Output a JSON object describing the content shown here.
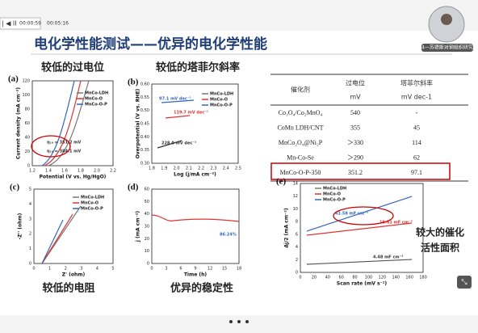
{
  "player": {
    "time_current": "00:00:59",
    "time_total": "00:05:16",
    "presenter_label": "4—苏德斯对钢组织研究"
  },
  "slide": {
    "title": "电化学性能测试——优异的电化学性能",
    "captions": [
      "较低的过电位",
      "较低的塔菲尔斜率",
      "较低的电阻",
      "优异的稳定性",
      "较大的催化",
      "活性面积"
    ],
    "table": {
      "header": [
        [
          "催化剂",
          ""
        ],
        [
          "过电位",
          "mV"
        ],
        [
          "塔菲尔斜率",
          "mV dec-1"
        ]
      ],
      "rows": [
        [
          "Co₃O₄/Co₂MnO₄",
          "540",
          "-"
        ],
        [
          "CoMn LDH/CNT",
          "355",
          "45"
        ],
        [
          "MnCo₂O₄@Ni₂P",
          "＞330",
          "114"
        ],
        [
          "Mn-Co-Se",
          "＞290",
          "62"
        ],
        [
          "MnCo-O-P-350",
          "351.2",
          "97.1"
        ]
      ]
    },
    "panels": [
      {
        "label": "(a)",
        "ylabel": "Current density (mA cm⁻²)",
        "xlabel": "Potential (V vs. Hg/HgO)",
        "xticks": [
          "1.2",
          "1.4",
          "1.6",
          "1.8",
          "2.0",
          "2.2"
        ],
        "yticks": [
          "0",
          "20",
          "40",
          "60",
          "80",
          "100",
          "120"
        ],
        "legend": [
          "MnCo-LDH",
          "MnCo-O",
          "MnCo-O-P"
        ],
        "annotations": [
          "η₁₀ = 351.2 mV",
          "η₁₀ = 384.1 mV"
        ]
      },
      {
        "label": "(b)",
        "ylabel": "Overpotential (V vs. RHE)",
        "xlabel": "Log (j/mA cm⁻²)",
        "xticks": [
          "1.8",
          "1.9",
          "2.0",
          "2.1",
          "2.2",
          "2.3",
          "2.4",
          "2.5"
        ],
        "yticks": [
          "0.30",
          "0.35",
          "0.40",
          "0.45",
          "0.50",
          "0.55",
          "0.60"
        ],
        "legend": [
          "MnCo-LDH",
          "MnCo-O",
          "MnCo-O-P"
        ],
        "annotations": [
          "97.1 mV dec⁻¹",
          "119.7 mV dec⁻¹",
          "228.0 mV dec⁻¹"
        ]
      },
      {
        "label": "(c)",
        "ylabel": "-Z'' (ohm)",
        "xlabel": "Z' (ohm)",
        "xticks": [
          "0",
          "1",
          "2",
          "3",
          "4",
          "5"
        ],
        "yticks": [
          "0",
          "1",
          "2",
          "3",
          "4",
          "5"
        ],
        "legend": [
          "MnCo-LDH",
          "MnCo-O",
          "MnCo-O-P"
        ],
        "annotations": []
      },
      {
        "label": "(d)",
        "ylabel": "j (mA cm⁻²)",
        "xlabel": "Time (h)",
        "xticks": [
          "0",
          "3",
          "6",
          "9",
          "12",
          "15",
          "18"
        ],
        "yticks": [
          "0",
          "10",
          "20",
          "30",
          "40",
          "50",
          "60"
        ],
        "legend": [],
        "annotations": [
          "86.24%"
        ]
      },
      {
        "label": "(e)",
        "ylabel": "Δj/2 (mA cm⁻²)",
        "xlabel": "Scan rate (mV s⁻¹)",
        "xticks": [
          "0",
          "20",
          "40",
          "60",
          "80",
          "100",
          "120",
          "140",
          "160",
          "180"
        ],
        "yticks": [
          "0",
          "2",
          "4",
          "6",
          "8",
          "10",
          "12",
          "14"
        ],
        "legend": [
          "MnCo-LDH",
          "MnCo-O",
          "MnCo-O-P"
        ],
        "annotations": [
          "41.58 mF cm⁻²",
          "15.61 mF cm⁻²",
          "4.48 mF cm⁻²"
        ]
      }
    ]
  }
}
